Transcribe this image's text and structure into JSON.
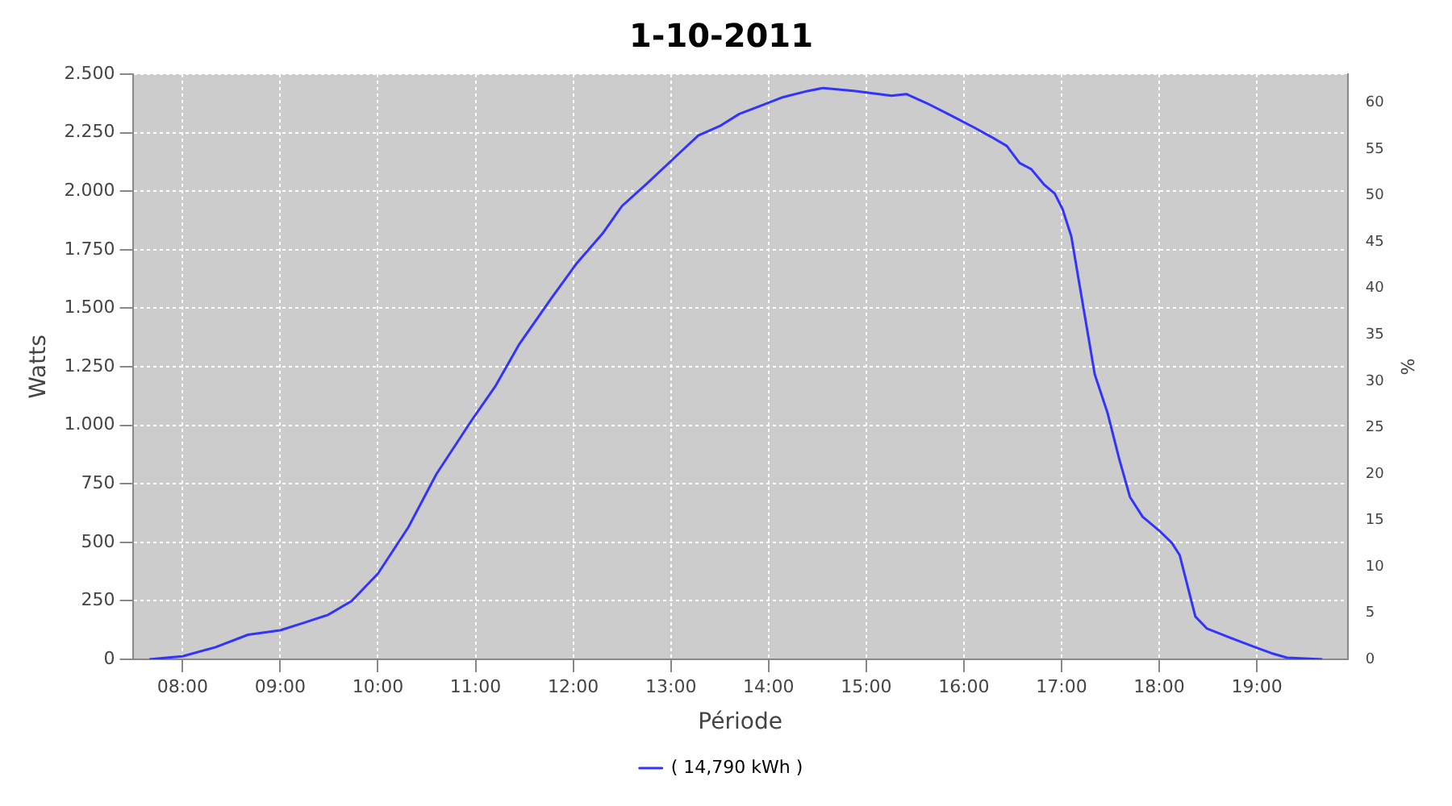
{
  "chart_data": {
    "type": "line",
    "title": "1-10-2011",
    "xlabel": "Période",
    "ylabel": "Watts",
    "y2label": "%",
    "xlim": [
      7.49,
      19.93
    ],
    "xticks": [
      {
        "value": 8,
        "label": "08:00"
      },
      {
        "value": 9,
        "label": "09:00"
      },
      {
        "value": 10,
        "label": "10:00"
      },
      {
        "value": 11,
        "label": "11:00"
      },
      {
        "value": 12,
        "label": "12:00"
      },
      {
        "value": 13,
        "label": "13:00"
      },
      {
        "value": 14,
        "label": "14:00"
      },
      {
        "value": 15,
        "label": "15:00"
      },
      {
        "value": 16,
        "label": "16:00"
      },
      {
        "value": 17,
        "label": "17:00"
      },
      {
        "value": 18,
        "label": "18:00"
      },
      {
        "value": 19,
        "label": "19:00"
      }
    ],
    "ylim": [
      0,
      2500
    ],
    "yticks": [
      0,
      250,
      500,
      750,
      {
        "value": 1000,
        "label": "1.000"
      },
      {
        "value": 1250,
        "label": "1.250"
      },
      {
        "value": 1500,
        "label": "1.500"
      },
      {
        "value": 1750,
        "label": "1.750"
      },
      {
        "value": 2000,
        "label": "2.000"
      },
      {
        "value": 2250,
        "label": "2.250"
      },
      {
        "value": 2500,
        "label": "2.500"
      }
    ],
    "y2lim": [
      0,
      63.1
    ],
    "y2ticks": [
      0,
      5,
      10,
      15,
      20,
      25,
      30,
      35,
      40,
      45,
      50,
      55,
      60
    ],
    "grid": true,
    "legend": "bottom",
    "marker": "none",
    "line_style": "solid",
    "x": [
      7.66,
      8.0,
      8.34,
      8.67,
      9.0,
      9.25,
      9.49,
      9.73,
      10.0,
      10.31,
      10.6,
      10.96,
      11.2,
      11.45,
      11.78,
      12.03,
      12.3,
      12.5,
      12.76,
      13.08,
      13.28,
      13.5,
      13.7,
      13.9,
      14.15,
      14.4,
      14.56,
      14.89,
      15.13,
      15.26,
      15.41,
      15.62,
      15.87,
      16.11,
      16.28,
      16.44,
      16.57,
      16.69,
      16.82,
      16.93,
      17.01,
      17.1,
      17.18,
      17.26,
      17.34,
      17.47,
      17.59,
      17.7,
      17.83,
      18.0,
      18.13,
      18.21,
      18.29,
      18.37,
      18.49,
      18.73,
      18.98,
      19.15,
      19.31,
      19.67
    ],
    "series": [
      {
        "name": "( 14,790 kWh )",
        "color": "#3333ff",
        "values": [
          0,
          13,
          52,
          105,
          124,
          157,
          190,
          249,
          366,
          563,
          792,
          1021,
          1165,
          1348,
          1545,
          1689,
          1819,
          1937,
          2035,
          2160,
          2238,
          2278,
          2330,
          2362,
          2402,
          2428,
          2441,
          2428,
          2415,
          2408,
          2415,
          2376,
          2323,
          2271,
          2232,
          2193,
          2121,
          2094,
          2029,
          1990,
          1924,
          1807,
          1610,
          1414,
          1217,
          1054,
          857,
          694,
          609,
          550,
          497,
          445,
          314,
          183,
          131,
          92,
          52,
          26,
          7,
          0
        ]
      }
    ]
  }
}
